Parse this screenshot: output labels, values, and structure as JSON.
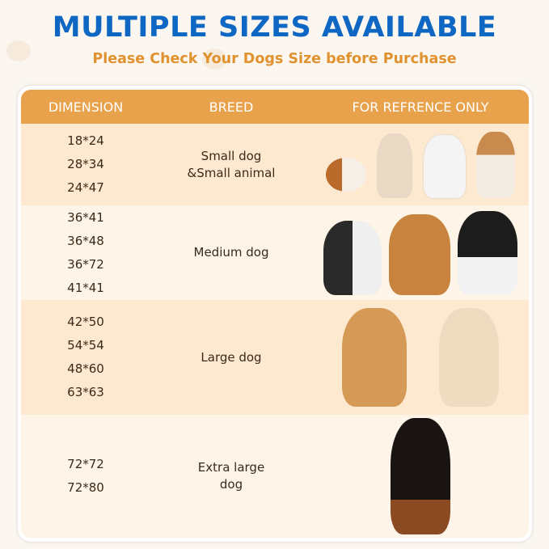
{
  "title": "MULTIPLE SIZES AVAILABLE",
  "subtitle": "Please Check Your Dogs Size before Purchase",
  "table": {
    "headers": [
      "DIMENSION",
      "BREED",
      "FOR REFRENCE ONLY"
    ],
    "rows": [
      {
        "dimensions": [
          "18*24",
          "28*34",
          "24*47"
        ],
        "breed": [
          "Small dog",
          "&Small animal"
        ],
        "images": [
          "guinea-pig",
          "chihuahua",
          "bichon",
          "corgi"
        ]
      },
      {
        "dimensions": [
          "36*41",
          "36*48",
          "36*72",
          "41*41"
        ],
        "breed": [
          "Medium dog"
        ],
        "images": [
          "french-bulldog",
          "shiba-inu",
          "border-collie"
        ]
      },
      {
        "dimensions": [
          "42*50",
          "54*54",
          "48*60",
          "63*63"
        ],
        "breed": [
          "Large dog"
        ],
        "images": [
          "golden-retriever",
          "labrador"
        ]
      },
      {
        "dimensions": [
          "72*72",
          "72*80"
        ],
        "breed": [
          "Extra large",
          "dog"
        ],
        "images": [
          "doberman"
        ]
      }
    ]
  },
  "colors": {
    "title": "#0f67c4",
    "subtitle": "#e0922e",
    "header": "#e8a24c",
    "row_dark": "#fde9cf",
    "row_light": "#fef5e8"
  }
}
